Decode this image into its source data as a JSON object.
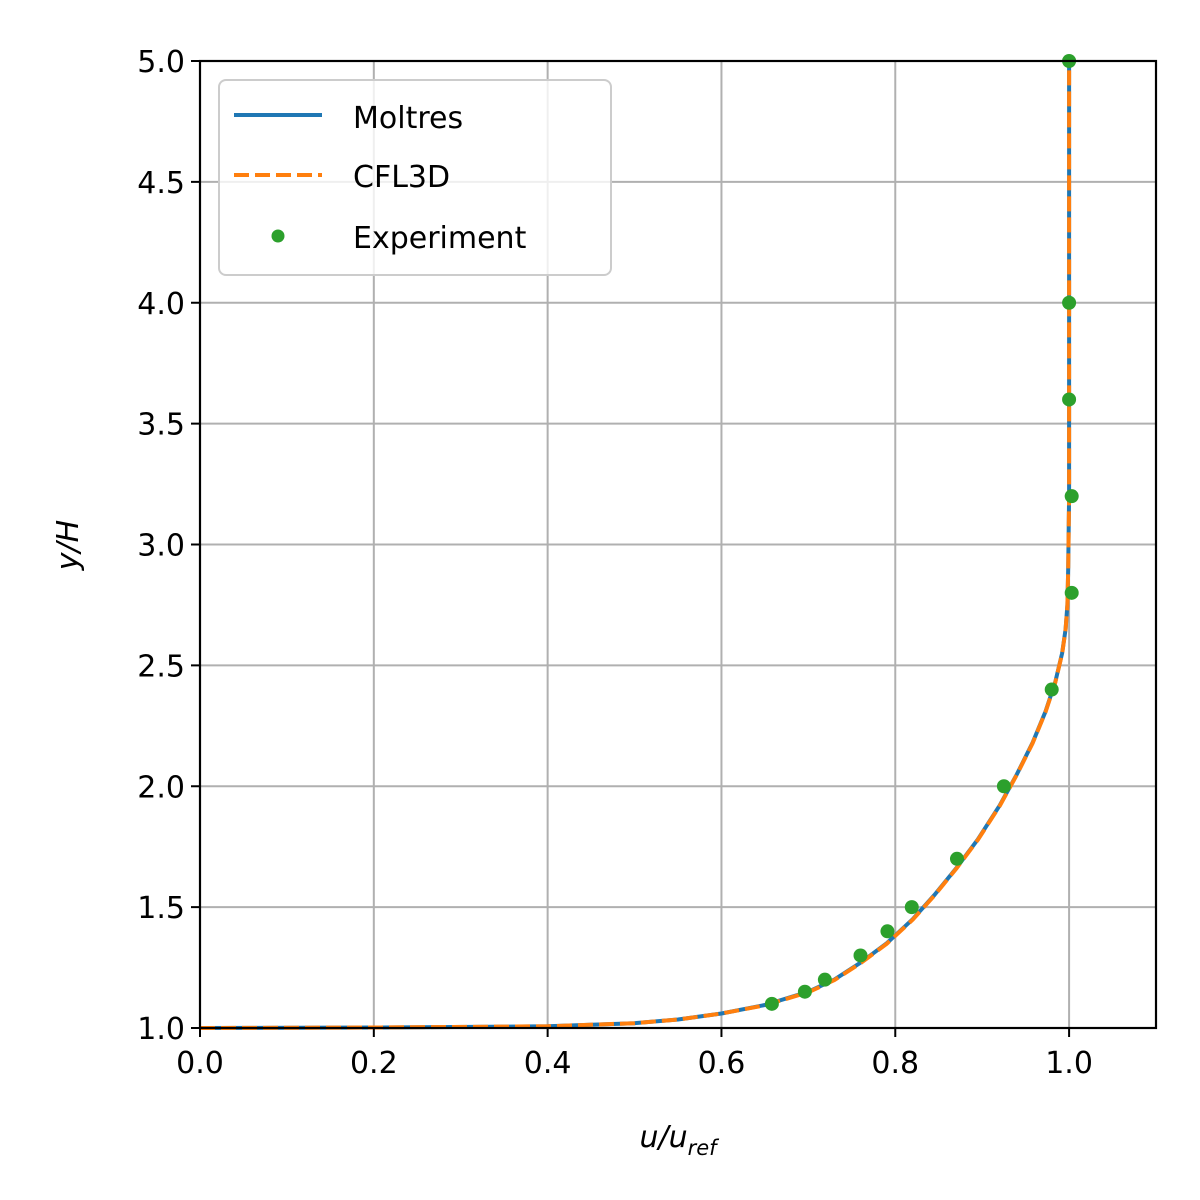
{
  "chart_data": {
    "type": "line",
    "title": "",
    "xlabel": {
      "main": "u/u",
      "sub": "ref"
    },
    "ylabel": "y/H",
    "xlim": [
      0.0,
      1.1
    ],
    "ylim": [
      1.0,
      5.0
    ],
    "grid": true,
    "legend_position": "top-left",
    "x_ticks": [
      {
        "value": 0.0,
        "label": "0.0"
      },
      {
        "value": 0.2,
        "label": "0.2"
      },
      {
        "value": 0.4,
        "label": "0.4"
      },
      {
        "value": 0.6,
        "label": "0.6"
      },
      {
        "value": 0.8,
        "label": "0.8"
      },
      {
        "value": 1.0,
        "label": "1.0"
      }
    ],
    "y_ticks": [
      {
        "value": 1.0,
        "label": "1.0"
      },
      {
        "value": 1.5,
        "label": "1.5"
      },
      {
        "value": 2.0,
        "label": "2.0"
      },
      {
        "value": 2.5,
        "label": "2.5"
      },
      {
        "value": 3.0,
        "label": "3.0"
      },
      {
        "value": 3.5,
        "label": "3.5"
      },
      {
        "value": 4.0,
        "label": "4.0"
      },
      {
        "value": 4.5,
        "label": "4.5"
      },
      {
        "value": 5.0,
        "label": "5.0"
      }
    ],
    "series": [
      {
        "name": "Moltres",
        "style": "solid",
        "color": "#1f77b4",
        "x": [
          0.0,
          0.2,
          0.4,
          0.5,
          0.55,
          0.6,
          0.65,
          0.7,
          0.73,
          0.76,
          0.79,
          0.82,
          0.845,
          0.87,
          0.895,
          0.92,
          0.94,
          0.958,
          0.973,
          0.984,
          0.992,
          0.996,
          0.998,
          0.999,
          1.0,
          1.0
        ],
        "y": [
          1.0,
          1.002,
          1.007,
          1.02,
          1.035,
          1.06,
          1.095,
          1.15,
          1.2,
          1.27,
          1.35,
          1.45,
          1.55,
          1.66,
          1.78,
          1.92,
          2.05,
          2.18,
          2.31,
          2.43,
          2.55,
          2.65,
          2.75,
          2.9,
          3.2,
          5.0
        ]
      },
      {
        "name": "CFL3D",
        "style": "dashed",
        "color": "#ff7f0e",
        "x": [
          0.0,
          0.2,
          0.4,
          0.5,
          0.55,
          0.6,
          0.65,
          0.7,
          0.73,
          0.76,
          0.79,
          0.82,
          0.845,
          0.87,
          0.895,
          0.92,
          0.94,
          0.958,
          0.973,
          0.984,
          0.992,
          0.996,
          0.998,
          0.999,
          1.0,
          1.0
        ],
        "y": [
          1.0,
          1.002,
          1.007,
          1.02,
          1.035,
          1.06,
          1.094,
          1.148,
          1.198,
          1.268,
          1.348,
          1.448,
          1.548,
          1.658,
          1.778,
          1.918,
          2.048,
          2.178,
          2.308,
          2.428,
          2.548,
          2.648,
          2.75,
          2.9,
          3.2,
          5.0
        ]
      },
      {
        "name": "Experiment",
        "style": "markers",
        "color": "#2ca02c",
        "x": [
          0.658,
          0.696,
          0.719,
          0.76,
          0.791,
          0.819,
          0.871,
          0.925,
          0.98,
          1.003,
          1.003,
          1.0,
          1.0,
          1.0
        ],
        "y": [
          1.1,
          1.15,
          1.2,
          1.3,
          1.4,
          1.5,
          1.7,
          2.0,
          2.4,
          2.8,
          3.2,
          3.6,
          4.0,
          5.0
        ]
      }
    ]
  }
}
